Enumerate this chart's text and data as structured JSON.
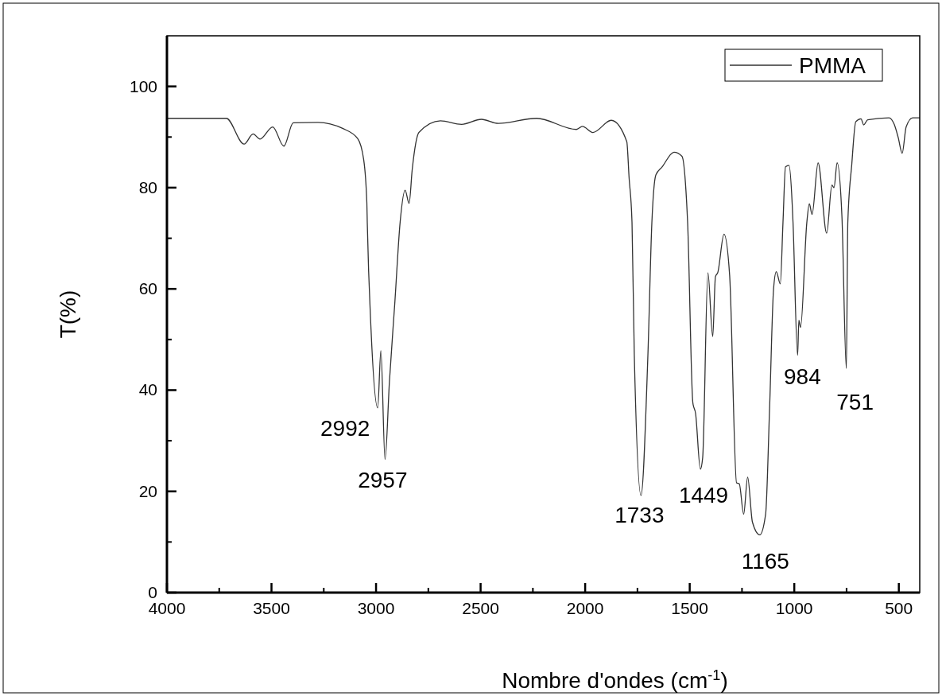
{
  "chart_data": {
    "type": "line",
    "xlabel": "Nombre d'ondes (cm$^{-1}$)",
    "ylabel": "T(%)",
    "xlim": [
      4000,
      400
    ],
    "xticks": [
      4000,
      3500,
      3000,
      2500,
      2000,
      1500,
      1000,
      500
    ],
    "ylim": [
      0,
      110
    ],
    "yticks": [
      0,
      20,
      40,
      60,
      80,
      100
    ],
    "grid": false,
    "legend": "top right",
    "marker": "none",
    "line_style": "solid",
    "series": [
      {
        "name": "PMMA",
        "color": "#333333",
        "x": [
          4000,
          3716,
          3631,
          3588,
          3555,
          3494,
          3441,
          3396,
          3278,
          3160,
          3088,
          3059,
          3044,
          3042,
          3024,
          2992,
          2977,
          2957,
          2936,
          2910,
          2885,
          2861,
          2842,
          2827,
          2795,
          2692,
          2591,
          2496,
          2415,
          2232,
          2042,
          2013,
          1963,
          1875,
          1801,
          1790,
          1776,
          1765,
          1733,
          1700,
          1681,
          1662,
          1632,
          1575,
          1537,
          1518,
          1510,
          1485,
          1472,
          1449,
          1438,
          1413,
          1390,
          1377,
          1366,
          1336,
          1309,
          1276,
          1263,
          1242,
          1223,
          1200,
          1165,
          1137,
          1118,
          1099,
          1086,
          1067,
          1054,
          1042,
          1025,
          1010,
          1006,
          984,
          978,
          970,
          940,
          928,
          915,
          886,
          845,
          820,
          810,
          795,
          772,
          751,
          744,
          725,
          706,
          681,
          668,
          649,
          547,
          522,
          503,
          484,
          465,
          434,
          400
        ],
        "values": [
          93.7,
          93.7,
          88.6,
          90.6,
          89.6,
          92,
          88.2,
          92.8,
          92.9,
          91.7,
          89.7,
          85.5,
          77,
          73.1,
          52,
          36.5,
          47.8,
          26.3,
          41.7,
          57.4,
          73.1,
          79.5,
          76.9,
          83.6,
          90.9,
          93.2,
          92.5,
          93.5,
          92.7,
          93.7,
          91.5,
          92.1,
          90.9,
          93.3,
          89.1,
          82,
          73.1,
          46.9,
          19.2,
          46.9,
          73.1,
          82.5,
          84.1,
          87,
          86.2,
          79.4,
          73.1,
          37.5,
          35.4,
          24.4,
          26.7,
          63.2,
          50.6,
          62.4,
          63.2,
          70.8,
          62.6,
          21.7,
          21.5,
          15.5,
          22.8,
          13.9,
          11.4,
          15.5,
          36.5,
          60,
          63.4,
          61,
          73.1,
          84.1,
          84.4,
          76.8,
          73.1,
          46.9,
          53.8,
          52.4,
          73.1,
          76.8,
          74.7,
          84.9,
          71,
          80.5,
          80,
          84.9,
          74.2,
          44.3,
          73.1,
          84.6,
          93,
          93.6,
          92.4,
          93.4,
          93.8,
          92.5,
          89.9,
          86.8,
          92,
          93.8,
          93.8
        ]
      }
    ],
    "annotations": [
      {
        "text": "2992",
        "x": 2992,
        "y": 36.5
      },
      {
        "text": "2957",
        "x": 2957,
        "y": 26.3
      },
      {
        "text": "1733",
        "x": 1733,
        "y": 19.2
      },
      {
        "text": "1449",
        "x": 1449,
        "y": 24.4
      },
      {
        "text": "1165",
        "x": 1165,
        "y": 11.4
      },
      {
        "text": "984",
        "x": 984,
        "y": 46.9
      },
      {
        "text": "751",
        "x": 751,
        "y": 44.3
      }
    ]
  }
}
